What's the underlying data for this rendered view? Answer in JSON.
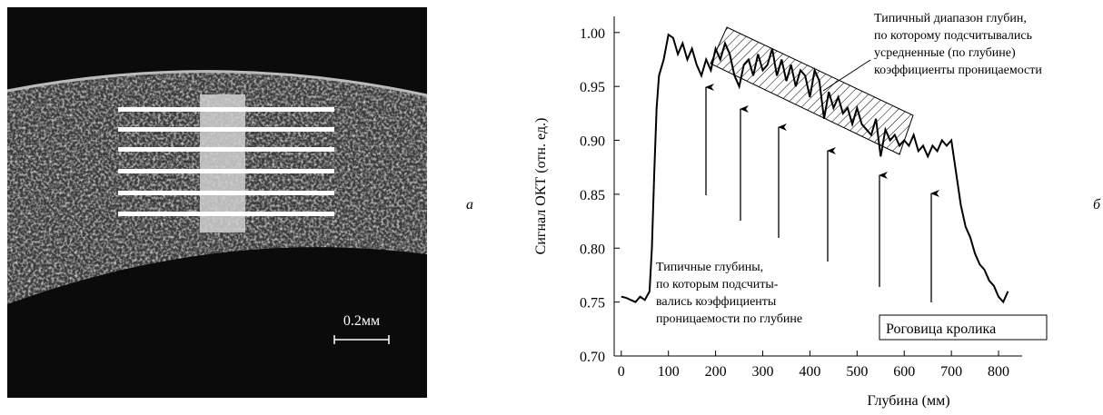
{
  "figure_labels": {
    "left": "а",
    "right": "б"
  },
  "image": {
    "scale_bar": "0.2мм"
  },
  "chart_data": {
    "type": "line",
    "xlabel": "Глубина (мм)",
    "ylabel": "Сигнал ОКТ (отн. ед.)",
    "x": [
      0,
      10,
      20,
      30,
      40,
      50,
      60,
      65,
      70,
      75,
      80,
      90,
      100,
      110,
      120,
      130,
      140,
      150,
      160,
      170,
      180,
      190,
      200,
      210,
      220,
      230,
      240,
      250,
      260,
      270,
      280,
      290,
      300,
      310,
      320,
      330,
      340,
      350,
      360,
      370,
      380,
      390,
      400,
      410,
      420,
      430,
      440,
      450,
      460,
      470,
      480,
      490,
      500,
      510,
      520,
      530,
      540,
      550,
      560,
      570,
      580,
      590,
      600,
      610,
      620,
      630,
      640,
      650,
      660,
      670,
      680,
      690,
      700,
      710,
      720,
      730,
      740,
      750,
      760,
      770,
      780,
      790,
      800,
      810,
      820
    ],
    "series": [
      {
        "color": "#000000",
        "values": [
          0.755,
          0.754,
          0.752,
          0.75,
          0.755,
          0.752,
          0.76,
          0.8,
          0.87,
          0.93,
          0.96,
          0.975,
          0.998,
          0.995,
          0.98,
          0.99,
          0.975,
          0.985,
          0.97,
          0.96,
          0.975,
          0.965,
          0.985,
          0.975,
          0.99,
          0.98,
          0.96,
          0.95,
          0.97,
          0.975,
          0.96,
          0.98,
          0.965,
          0.97,
          0.985,
          0.96,
          0.975,
          0.955,
          0.97,
          0.95,
          0.965,
          0.96,
          0.94,
          0.965,
          0.955,
          0.92,
          0.945,
          0.93,
          0.94,
          0.925,
          0.93,
          0.915,
          0.93,
          0.915,
          0.91,
          0.905,
          0.92,
          0.885,
          0.91,
          0.9,
          0.905,
          0.895,
          0.9,
          0.895,
          0.905,
          0.89,
          0.895,
          0.885,
          0.895,
          0.89,
          0.9,
          0.895,
          0.9,
          0.87,
          0.84,
          0.82,
          0.81,
          0.795,
          0.785,
          0.78,
          0.77,
          0.765,
          0.755,
          0.75,
          0.76
        ]
      }
    ],
    "xlim": [
      -15,
      850
    ],
    "xticks": [
      0,
      100,
      200,
      300,
      400,
      500,
      600,
      700,
      800
    ],
    "ylim": [
      0.7,
      1.015
    ],
    "yticks": [
      {
        "value": 0.7,
        "label": "0.70"
      },
      0.75,
      {
        "value": 0.8,
        "label": "0.80"
      },
      0.85,
      {
        "value": 0.9,
        "label": "0.90"
      },
      0.95,
      {
        "value": 1.0,
        "label": "1.00"
      }
    ],
    "annotations": [
      {
        "lines": [
          "Типичный диапазон глубин,",
          "по которому подсчитывались",
          "усредненные (по глубине)",
          "коэффициенты проницаемости"
        ]
      },
      {
        "lines": [
          "Типичные глубины,",
          "по которым подсчиты-",
          "вались коэффициенты",
          "проницаемости по глубине"
        ]
      },
      {
        "lines": [
          "Роговица кролика"
        ]
      }
    ]
  }
}
